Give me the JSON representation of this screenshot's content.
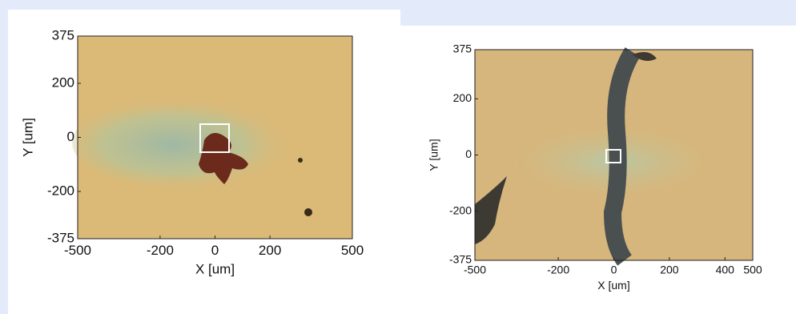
{
  "panels": [
    {
      "x_label": "X [um]",
      "y_label": "Y [um]",
      "xlim": [
        -500,
        500
      ],
      "ylim": [
        -375,
        375
      ],
      "xticks": [
        -500,
        -200,
        0,
        200,
        500
      ],
      "yticks": [
        -375,
        -200,
        0,
        200,
        375
      ]
    },
    {
      "x_label": "X [um]",
      "y_label": "Y [um]",
      "xlim": [
        -500,
        500
      ],
      "ylim": [
        -375,
        375
      ],
      "xticks": [
        -500,
        -200,
        0,
        200,
        400,
        500
      ],
      "yticks": [
        -375,
        -200,
        0,
        200,
        375
      ]
    }
  ]
}
